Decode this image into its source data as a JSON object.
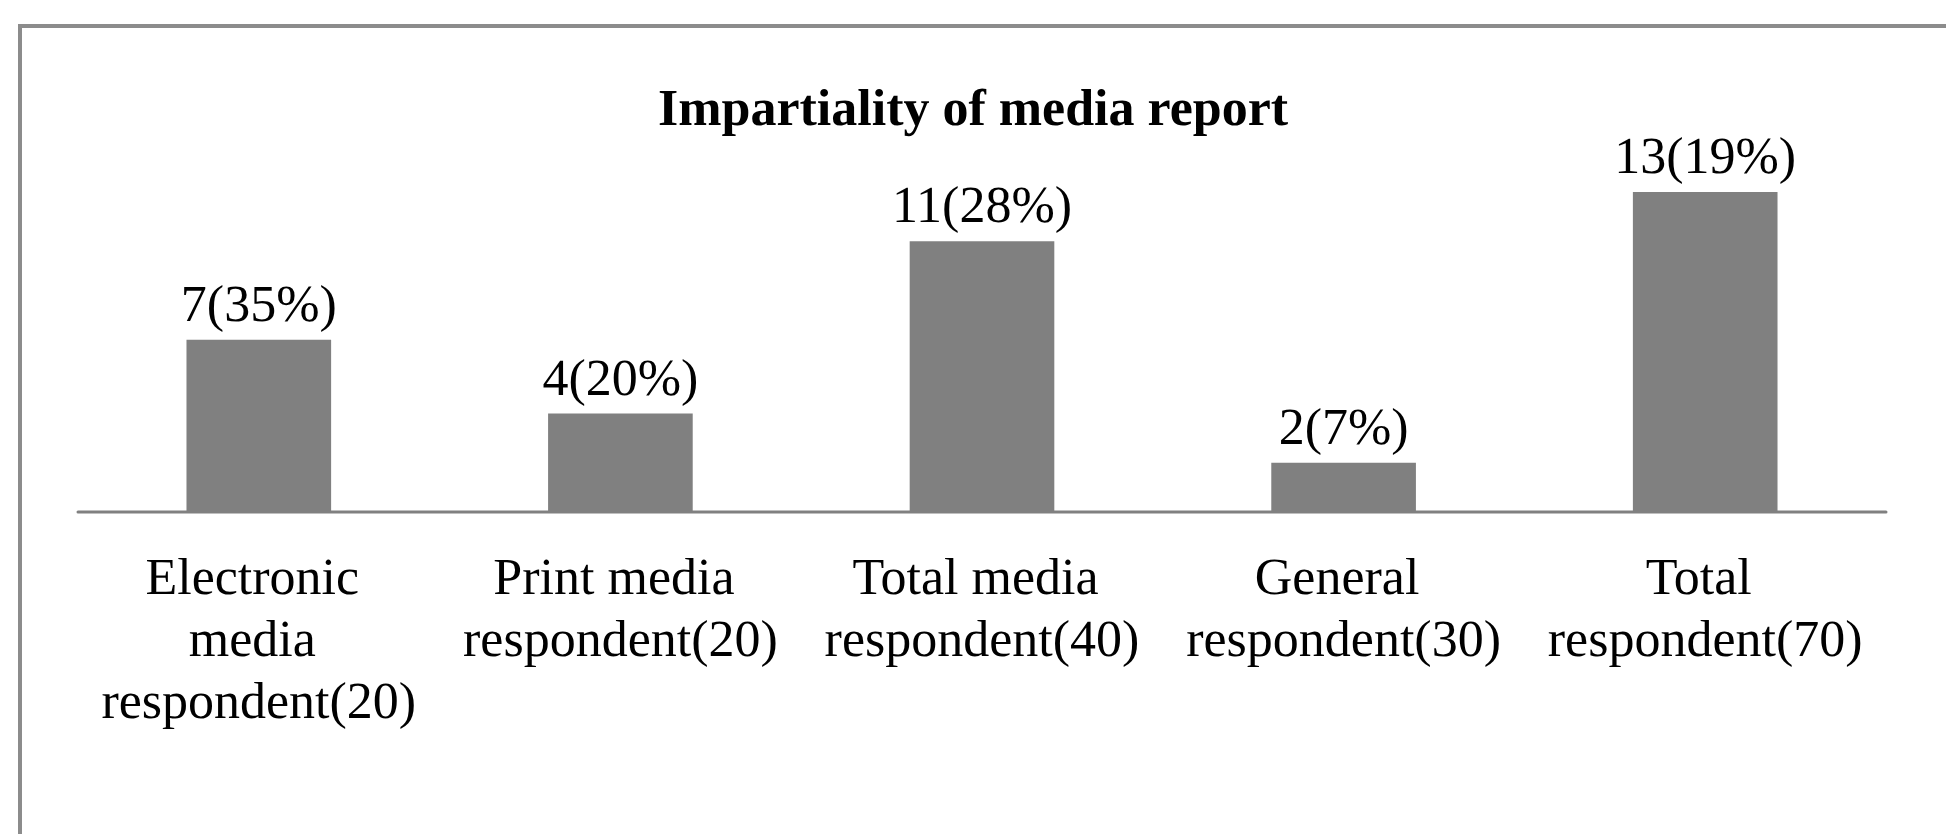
{
  "chart_data": {
    "type": "bar",
    "title": "Impartiality of media report",
    "categories": [
      "Electronic media respondent(20)",
      "Print media respondent(20)",
      "Total media respondent(40)",
      "General respondent(30)",
      "Total respondent(70)"
    ],
    "values": [
      7,
      4,
      11,
      2,
      13
    ],
    "color": "#808080",
    "value_labels": [
      "7(35%)",
      "4(20%)",
      "11(28%)",
      "2(7%)",
      "13(19%)"
    ],
    "tick_labels": "x"
  }
}
